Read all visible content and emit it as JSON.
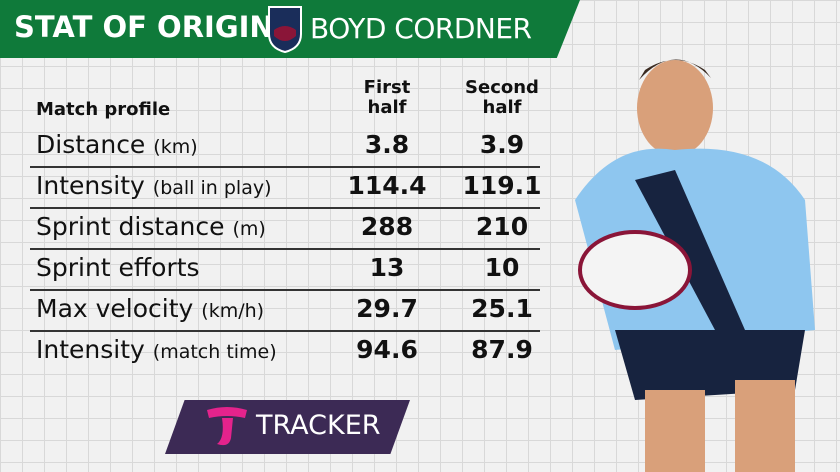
{
  "header": {
    "title": "STAT OF ORIGIN",
    "player": "BOYD CORDNER"
  },
  "table": {
    "columns": [
      "Match profile",
      "First half",
      "Second half"
    ],
    "rows": [
      {
        "label": "Distance",
        "unit": "(km)",
        "first": 3.8,
        "second": 3.9
      },
      {
        "label": "Intensity",
        "unit": "(ball in play)",
        "first": 114.4,
        "second": 119.1
      },
      {
        "label": "Sprint distance",
        "unit": "(m)",
        "first": 288,
        "second": 210
      },
      {
        "label": "Sprint efforts",
        "unit": "",
        "first": 13,
        "second": 10
      },
      {
        "label": "Max velocity",
        "unit": "(km/h)",
        "first": 29.7,
        "second": 25.1
      },
      {
        "label": "Intensity",
        "unit": "(match time)",
        "first": 94.6,
        "second": 87.9
      }
    ]
  },
  "footer": {
    "brand": "TRACKER"
  }
}
